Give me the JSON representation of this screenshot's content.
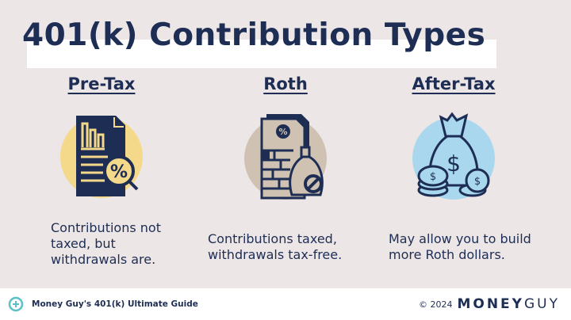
{
  "title": "401(k) Contribution Types",
  "columns": [
    {
      "heading": "Pre-Tax",
      "description": "Contributions not taxed, but withdrawals are.",
      "icon": "document-percent-magnifier-icon",
      "circle_color": "#f5d98a"
    },
    {
      "heading": "Roth",
      "description": "Contributions taxed, withdrawals tax-free.",
      "icon": "document-money-bag-no-tax-icon",
      "circle_color": "#cfc2b3"
    },
    {
      "heading": "After-Tax",
      "description": "May allow you to build more Roth dollars.",
      "icon": "money-bag-coins-icon",
      "circle_color": "#a9d8ee"
    }
  ],
  "footer": {
    "guide": "Money Guy's 401(k) Ultimate Guide",
    "copyright": "© 2024",
    "brand_money": "MONEY",
    "brand_guy": "GUY"
  },
  "colors": {
    "navy": "#1d2d54",
    "background": "#ede6e6",
    "accent": "#5bc0c8"
  }
}
